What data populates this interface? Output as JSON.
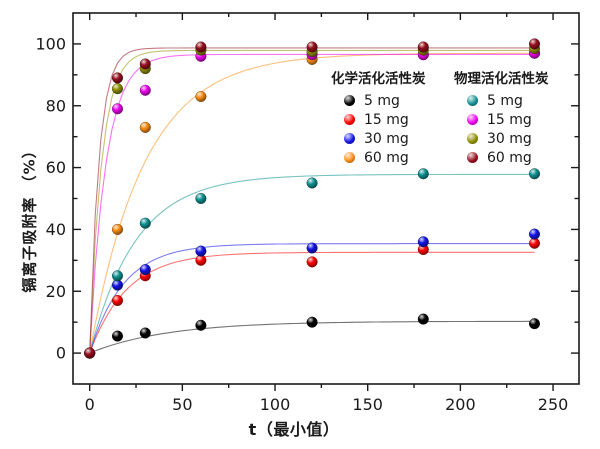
{
  "figure": {
    "background": "#ffffff",
    "text_color": "#1a1a1a"
  },
  "chart_data": {
    "type": "scatter",
    "title": "",
    "xlabel": "t（最小值）",
    "ylabel": "镉离子吸附率 （%）",
    "xlim": [
      -9,
      264
    ],
    "ylim": [
      -10,
      110
    ],
    "x_ticks": [
      0,
      50,
      100,
      150,
      200,
      250
    ],
    "x_minor_ticks": [
      25,
      75,
      125,
      175,
      225
    ],
    "y_ticks": [
      0,
      20,
      40,
      60,
      80,
      100
    ],
    "y_minor_ticks": [
      10,
      30,
      50,
      70,
      90
    ],
    "grid": false,
    "x": [
      0,
      15,
      30,
      60,
      120,
      180,
      240
    ],
    "legend": {
      "position": "inside-top",
      "groups": [
        {
          "title": "化学活化活性炭",
          "series_indexes": [
            0,
            1,
            2,
            3
          ]
        },
        {
          "title": "物理活化活性炭",
          "series_indexes": [
            4,
            5,
            6,
            7
          ]
        }
      ]
    },
    "series": [
      {
        "group": "化学活化活性炭",
        "name": "5 mg",
        "color": "#000000",
        "values": [
          0,
          5.5,
          6.5,
          9,
          10,
          11,
          9.5
        ],
        "fit": {
          "plateau": 10.3,
          "k": 0.024
        }
      },
      {
        "group": "化学活化活性炭",
        "name": "15 mg",
        "color": "#ff0000",
        "values": [
          0,
          17,
          25,
          30,
          29.5,
          33.5,
          35.5
        ],
        "fit": {
          "plateau": 32.6,
          "k": 0.05
        }
      },
      {
        "group": "化学活化活性炭",
        "name": "30 mg",
        "color": "#1414e6",
        "values": [
          0,
          22,
          27,
          33,
          34,
          36,
          38.5
        ],
        "fit": {
          "plateau": 35.4,
          "k": 0.055
        }
      },
      {
        "group": "化学活化活性炭",
        "name": "60 mg",
        "color": "#fa8c14",
        "values": [
          0,
          40,
          73,
          83,
          95,
          96.5,
          97
        ],
        "fit": {
          "plateau": 97.0,
          "k": 0.034
        }
      },
      {
        "group": "物理活化活性炭",
        "name": "5 mg",
        "color": "#0f9090",
        "values": [
          0,
          25,
          42,
          50,
          55,
          58,
          58
        ],
        "fit": {
          "plateau": 57.8,
          "k": 0.04
        }
      },
      {
        "group": "物理活化活性炭",
        "name": "15 mg",
        "color": "#ee00ee",
        "values": [
          0,
          79,
          85,
          96,
          96.5,
          96.5,
          97
        ],
        "fit": {
          "plateau": 96.6,
          "k": 0.115
        }
      },
      {
        "group": "物理活化活性炭",
        "name": "30 mg",
        "color": "#8f8f00",
        "values": [
          0,
          85.5,
          92,
          98,
          97.5,
          98,
          98.5
        ],
        "fit": {
          "plateau": 97.9,
          "k": 0.155
        }
      },
      {
        "group": "物理活化活性炭",
        "name": "60 mg",
        "color": "#96101e",
        "values": [
          0,
          89,
          93.5,
          99,
          99,
          99,
          100
        ],
        "fit": {
          "plateau": 98.7,
          "k": 0.2
        }
      }
    ]
  }
}
